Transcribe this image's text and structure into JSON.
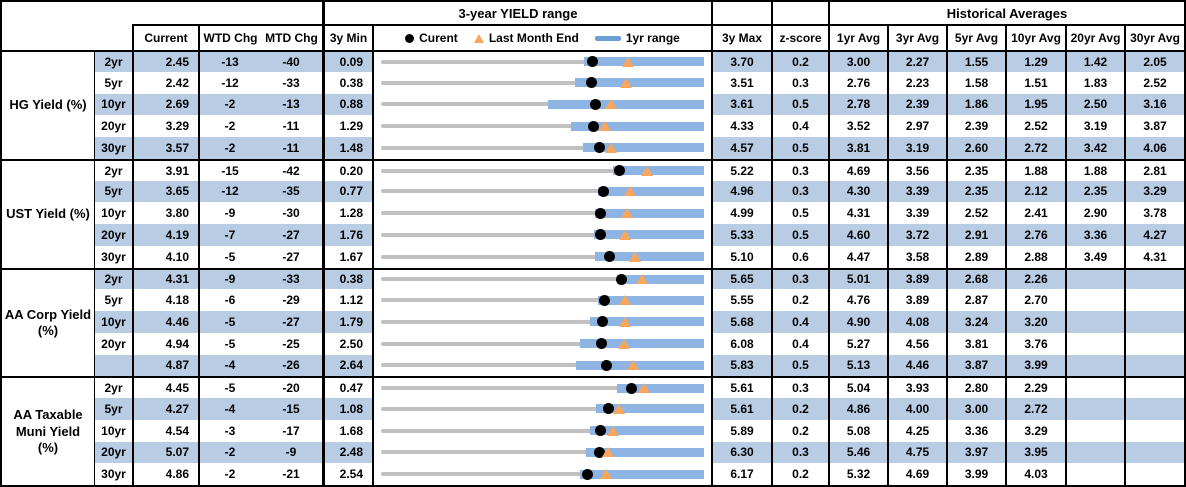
{
  "colors": {
    "stripe": "#B8CCE4",
    "range_bar": "#8DB4E2",
    "track": "#C0C0C0",
    "marker_orange": "#F9A55C",
    "marker_black": "#000000",
    "legend_bar": "#6D9ED6",
    "border": "#000000"
  },
  "chart_data": {
    "type": "table",
    "title": "3-year YIELD range",
    "hist_title": "Historical Averages",
    "columns": {
      "current": "Current",
      "wtd": "WTD Chg",
      "mtd": "MTD Chg",
      "min": "3y Min",
      "max": "3y Max",
      "zscore": "z-score",
      "avgs": [
        "1yr Avg",
        "3yr Avg",
        "5yr Avg",
        "10yr Avg",
        "20yr Avg",
        "30yr Avg"
      ]
    },
    "legend": {
      "current": "Curent",
      "last_month": "Last Month End",
      "range": "1yr range"
    },
    "sections": [
      {
        "label": "HG Yield (%)",
        "rows": [
          {
            "tenor": "2yr",
            "current": "2.45",
            "wtd": "-13",
            "mtd": "-40",
            "min": "0.09",
            "max": "3.70",
            "z": "0.2",
            "avgs": [
              "3.00",
              "2.27",
              "1.55",
              "1.29",
              "1.42",
              "2.05"
            ],
            "lme": 2.85,
            "yr1_low": 2.36
          },
          {
            "tenor": "5yr",
            "current": "2.42",
            "wtd": "-12",
            "mtd": "-33",
            "min": "0.38",
            "max": "3.51",
            "z": "0.3",
            "avgs": [
              "2.76",
              "2.23",
              "1.58",
              "1.51",
              "1.83",
              "2.52"
            ],
            "lme": 2.75,
            "yr1_low": 2.26
          },
          {
            "tenor": "10yr",
            "current": "2.69",
            "wtd": "-2",
            "mtd": "-13",
            "min": "0.88",
            "max": "3.61",
            "z": "0.5",
            "avgs": [
              "2.78",
              "2.39",
              "1.86",
              "1.95",
              "2.50",
              "3.16"
            ],
            "lme": 2.82,
            "yr1_low": 2.29
          },
          {
            "tenor": "20yr",
            "current": "3.29",
            "wtd": "-2",
            "mtd": "-11",
            "min": "1.29",
            "max": "4.33",
            "z": "0.4",
            "avgs": [
              "3.52",
              "2.97",
              "2.39",
              "2.52",
              "3.19",
              "3.87"
            ],
            "lme": 3.4,
            "yr1_low": 3.08
          },
          {
            "tenor": "30yr",
            "current": "3.57",
            "wtd": "-2",
            "mtd": "-11",
            "min": "1.48",
            "max": "4.57",
            "z": "0.5",
            "avgs": [
              "3.81",
              "3.19",
              "2.60",
              "2.72",
              "3.42",
              "4.06"
            ],
            "lme": 3.68,
            "yr1_low": 3.41
          }
        ]
      },
      {
        "label": "UST Yield (%)",
        "rows": [
          {
            "tenor": "2yr",
            "current": "3.91",
            "wtd": "-15",
            "mtd": "-42",
            "min": "0.20",
            "max": "5.22",
            "z": "0.3",
            "avgs": [
              "4.69",
              "3.56",
              "2.35",
              "1.88",
              "1.88",
              "2.81"
            ],
            "lme": 4.33,
            "yr1_low": 3.81
          },
          {
            "tenor": "5yr",
            "current": "3.65",
            "wtd": "-12",
            "mtd": "-35",
            "min": "0.77",
            "max": "4.96",
            "z": "0.3",
            "avgs": [
              "4.30",
              "3.39",
              "2.35",
              "2.12",
              "2.35",
              "3.29"
            ],
            "lme": 4.0,
            "yr1_low": 3.58
          },
          {
            "tenor": "10yr",
            "current": "3.80",
            "wtd": "-9",
            "mtd": "-30",
            "min": "1.28",
            "max": "4.99",
            "z": "0.5",
            "avgs": [
              "4.31",
              "3.39",
              "2.52",
              "2.41",
              "2.90",
              "3.78"
            ],
            "lme": 4.1,
            "yr1_low": 3.74
          },
          {
            "tenor": "20yr",
            "current": "4.19",
            "wtd": "-7",
            "mtd": "-27",
            "min": "1.76",
            "max": "5.33",
            "z": "0.5",
            "avgs": [
              "4.60",
              "3.72",
              "2.91",
              "2.76",
              "3.36",
              "4.27"
            ],
            "lme": 4.46,
            "yr1_low": 4.11
          },
          {
            "tenor": "30yr",
            "current": "4.10",
            "wtd": "-5",
            "mtd": "-27",
            "min": "1.67",
            "max": "5.10",
            "z": "0.6",
            "avgs": [
              "4.47",
              "3.58",
              "2.89",
              "2.88",
              "3.49",
              "4.31"
            ],
            "lme": 4.37,
            "yr1_low": 3.94
          }
        ]
      },
      {
        "label": "AA Corp Yield\n(%)",
        "rows": [
          {
            "tenor": "2yr",
            "current": "4.31",
            "wtd": "-9",
            "mtd": "-33",
            "min": "0.38",
            "max": "5.65",
            "z": "0.3",
            "avgs": [
              "5.01",
              "3.89",
              "2.68",
              "2.26",
              "",
              ""
            ],
            "lme": 4.64,
            "yr1_low": 4.23
          },
          {
            "tenor": "5yr",
            "current": "4.18",
            "wtd": "-6",
            "mtd": "-29",
            "min": "1.12",
            "max": "5.55",
            "z": "0.2",
            "avgs": [
              "4.76",
              "3.89",
              "2.87",
              "2.70",
              "",
              ""
            ],
            "lme": 4.47,
            "yr1_low": 4.09
          },
          {
            "tenor": "10yr",
            "current": "4.46",
            "wtd": "-5",
            "mtd": "-27",
            "min": "1.79",
            "max": "5.68",
            "z": "0.4",
            "avgs": [
              "4.90",
              "4.08",
              "3.24",
              "3.20",
              "",
              ""
            ],
            "lme": 4.73,
            "yr1_low": 4.31
          },
          {
            "tenor": "20yr",
            "current": "4.94",
            "wtd": "-5",
            "mtd": "-25",
            "min": "2.50",
            "max": "6.08",
            "z": "0.4",
            "avgs": [
              "5.27",
              "4.56",
              "3.81",
              "3.76",
              "",
              ""
            ],
            "lme": 5.19,
            "yr1_low": 4.71
          },
          {
            "tenor": "",
            "current": "4.87",
            "wtd": "-4",
            "mtd": "-26",
            "min": "2.64",
            "max": "5.83",
            "z": "0.5",
            "avgs": [
              "5.13",
              "4.46",
              "3.87",
              "3.99",
              "",
              ""
            ],
            "lme": 5.13,
            "yr1_low": 4.57
          }
        ]
      },
      {
        "label": "AA Taxable\nMuni Yield\n(%)",
        "rows": [
          {
            "tenor": "2yr",
            "current": "4.45",
            "wtd": "-5",
            "mtd": "-20",
            "min": "0.47",
            "max": "5.61",
            "z": "0.3",
            "avgs": [
              "5.04",
              "3.93",
              "2.80",
              "2.29",
              "",
              ""
            ],
            "lme": 4.65,
            "yr1_low": 4.22
          },
          {
            "tenor": "5yr",
            "current": "4.27",
            "wtd": "-4",
            "mtd": "-15",
            "min": "1.08",
            "max": "5.61",
            "z": "0.2",
            "avgs": [
              "4.86",
              "4.00",
              "3.00",
              "2.72",
              "",
              ""
            ],
            "lme": 4.42,
            "yr1_low": 4.1
          },
          {
            "tenor": "10yr",
            "current": "4.54",
            "wtd": "-3",
            "mtd": "-17",
            "min": "1.68",
            "max": "5.89",
            "z": "0.2",
            "avgs": [
              "5.08",
              "4.25",
              "3.36",
              "3.29",
              "",
              ""
            ],
            "lme": 4.71,
            "yr1_low": 4.4
          },
          {
            "tenor": "20yr",
            "current": "5.07",
            "wtd": "-2",
            "mtd": "-9",
            "min": "2.48",
            "max": "6.30",
            "z": "0.3",
            "avgs": [
              "5.46",
              "4.75",
              "3.97",
              "3.95",
              "",
              ""
            ],
            "lme": 5.16,
            "yr1_low": 4.9
          },
          {
            "tenor": "30yr",
            "current": "4.86",
            "wtd": "-2",
            "mtd": "-21",
            "min": "2.54",
            "max": "6.17",
            "z": "0.2",
            "avgs": [
              "5.32",
              "4.69",
              "3.99",
              "4.03",
              "",
              ""
            ],
            "lme": 5.07,
            "yr1_low": 4.78
          }
        ]
      }
    ]
  }
}
